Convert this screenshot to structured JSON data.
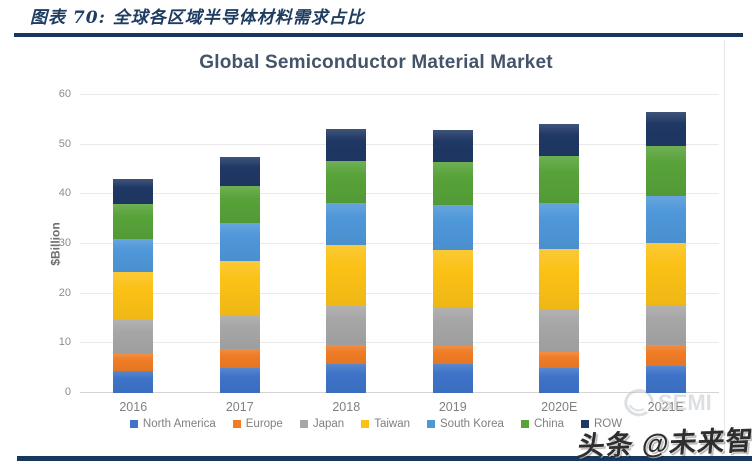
{
  "header": {
    "figure_title": "图表 70:  全球各区域半导体材料需求占比"
  },
  "watermarks": {
    "semi": "SEMI",
    "toutiao": "头条 @未来智库"
  },
  "chart_data": {
    "type": "bar",
    "stacked": true,
    "title": "Global Semiconductor Material Market",
    "xlabel": "",
    "ylabel": "$Billion",
    "ylim": [
      0,
      60
    ],
    "yticks": [
      0,
      10,
      20,
      30,
      40,
      50,
      60
    ],
    "grid": "horizontal",
    "legend_position": "bottom",
    "categories": [
      "2016",
      "2017",
      "2018",
      "2019",
      "2020E",
      "2021E"
    ],
    "series": [
      {
        "name": "North America",
        "color": "#3e73c8",
        "values": [
          4.5,
          5.0,
          5.8,
          5.9,
          5.1,
          5.5
        ]
      },
      {
        "name": "Europe",
        "color": "#f07c26",
        "values": [
          3.3,
          3.8,
          3.8,
          3.5,
          3.2,
          4.1
        ]
      },
      {
        "name": "Japan",
        "color": "#a6a6a6",
        "values": [
          7.0,
          7.0,
          7.9,
          8.0,
          8.7,
          8.2
        ]
      },
      {
        "name": "Taiwan",
        "color": "#fbc116",
        "values": [
          9.6,
          10.7,
          12.3,
          11.4,
          11.9,
          12.4
        ]
      },
      {
        "name": "South Korea",
        "color": "#4e97d9",
        "values": [
          6.7,
          7.8,
          8.4,
          9.0,
          9.3,
          9.5
        ]
      },
      {
        "name": "China",
        "color": "#57a239",
        "values": [
          6.9,
          7.4,
          8.6,
          8.8,
          9.5,
          10.1
        ]
      },
      {
        "name": "ROW",
        "color": "#1f3864",
        "values": [
          5.2,
          5.8,
          6.4,
          6.3,
          6.4,
          6.7
        ]
      }
    ],
    "totals": [
      43.2,
      47.5,
      53.2,
      52.9,
      54.1,
      56.5
    ]
  }
}
